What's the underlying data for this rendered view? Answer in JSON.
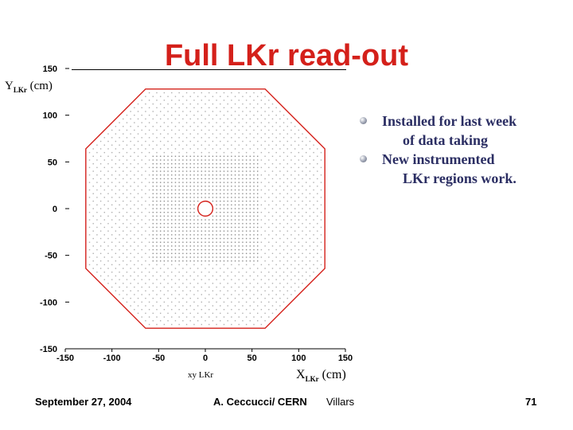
{
  "slide": {
    "title": "Full LKr read-out",
    "bullets": [
      {
        "line1": "Installed for last week",
        "line2": "of data taking"
      },
      {
        "line1": "New instrumented",
        "line2": "LKr regions work."
      }
    ],
    "footer": {
      "date": "September 27, 2004",
      "author": "A. Ceccucci/ CERN",
      "venue": "Villars",
      "page": "71"
    }
  },
  "chart_data": {
    "type": "scatter",
    "title": "",
    "caption": "xy LKr",
    "xlabel": {
      "main": "X",
      "sub": "LKr",
      "unit": "(cm)"
    },
    "ylabel": {
      "main": "Y",
      "sub": "LKr",
      "unit": "(cm)"
    },
    "xlim": [
      -150,
      150
    ],
    "ylim": [
      -150,
      150
    ],
    "xticks": [
      "-150",
      "-100",
      "-50",
      "0",
      "50",
      "100",
      "150"
    ],
    "yticks": [
      "150",
      "100",
      "50",
      "0",
      "-50",
      "-100",
      "-150"
    ],
    "outline_octagon": [
      [
        -64,
        128
      ],
      [
        64,
        128
      ],
      [
        128,
        64
      ],
      [
        128,
        -64
      ],
      [
        64,
        -128
      ],
      [
        -64,
        -128
      ],
      [
        -128,
        -64
      ],
      [
        -128,
        64
      ]
    ],
    "beam_pipe": {
      "x": 0,
      "y": 0,
      "r": 8
    },
    "colors": {
      "outline": "#d4201a",
      "cells": "#7a7a7a",
      "axis": "#000000"
    }
  }
}
